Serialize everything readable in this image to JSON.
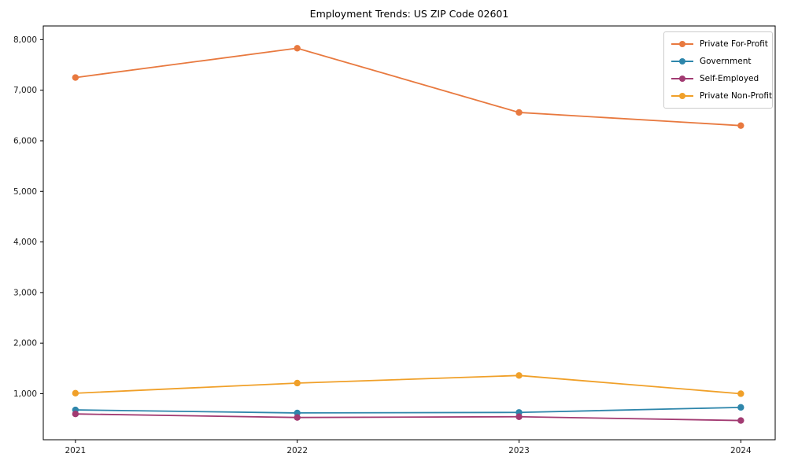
{
  "title": "Employment Trends: US ZIP Code 02601",
  "chart_data": {
    "type": "line",
    "title": "Employment Trends: US ZIP Code 02601",
    "xlabel": "",
    "ylabel": "",
    "x": [
      2021,
      2022,
      2023,
      2024
    ],
    "x_tick_labels": [
      "2021",
      "2022",
      "2023",
      "2024"
    ],
    "series": [
      {
        "name": "Private For-Profit",
        "color": "#E8793F",
        "values": [
          7250,
          7830,
          6560,
          6300
        ]
      },
      {
        "name": "Government",
        "color": "#2E86AB",
        "values": [
          680,
          620,
          630,
          730
        ]
      },
      {
        "name": "Self-Employed",
        "color": "#A23B72",
        "values": [
          600,
          530,
          545,
          470
        ]
      },
      {
        "name": "Private Non-Profit",
        "color": "#F0A029",
        "values": [
          1010,
          1210,
          1360,
          1000
        ]
      }
    ],
    "xlim": [
      2020.855,
      2024.155
    ],
    "ylim": [
      90,
      8270
    ],
    "y_ticks": [
      1000,
      2000,
      3000,
      4000,
      5000,
      6000,
      7000,
      8000
    ],
    "y_tick_labels": [
      "1,000",
      "2,000",
      "3,000",
      "4,000",
      "5,000",
      "6,000",
      "7,000",
      "8,000"
    ],
    "grid": false,
    "legend_position": "upper right",
    "marker": "circle",
    "axis_color": "#000000",
    "tick_label_color": "#1a1a1a"
  }
}
